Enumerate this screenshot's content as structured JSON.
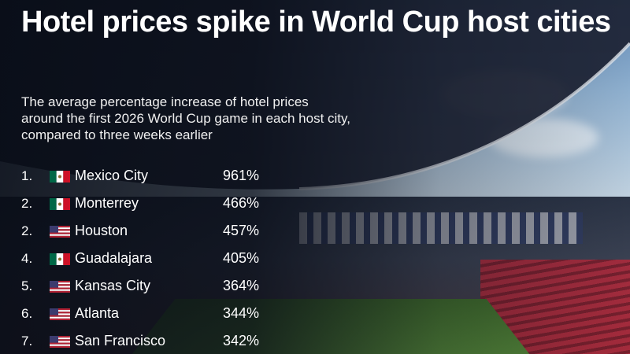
{
  "chart_data": {
    "type": "table",
    "title": "Hotel prices spike in World Cup host cities",
    "subtitle": "The average percentage increase of hotel prices around the first 2026 World Cup game in each host city, compared to three weeks earlier",
    "rows": [
      {
        "rank": "1.",
        "country": "mexico",
        "city": "Mexico City",
        "value": 961,
        "label": "961%"
      },
      {
        "rank": "2.",
        "country": "mexico",
        "city": "Monterrey",
        "value": 466,
        "label": "466%"
      },
      {
        "rank": "2.",
        "country": "usa",
        "city": "Houston",
        "value": 457,
        "label": "457%"
      },
      {
        "rank": "4.",
        "country": "mexico",
        "city": "Guadalajara",
        "value": 405,
        "label": "405%"
      },
      {
        "rank": "5.",
        "country": "usa",
        "city": "Kansas City",
        "value": 364,
        "label": "364%"
      },
      {
        "rank": "6.",
        "country": "usa",
        "city": "Atlanta",
        "value": 344,
        "label": "344%"
      },
      {
        "rank": "7.",
        "country": "usa",
        "city": "San Francisco",
        "value": 342,
        "label": "342%"
      }
    ]
  },
  "colors": {
    "mexico_green": "#006847",
    "mexico_red": "#ce1126",
    "usa_red": "#b22234",
    "usa_blue": "#3c3b6e"
  },
  "icons": {
    "mexico": "mexico-flag-icon",
    "usa": "usa-flag-icon"
  }
}
